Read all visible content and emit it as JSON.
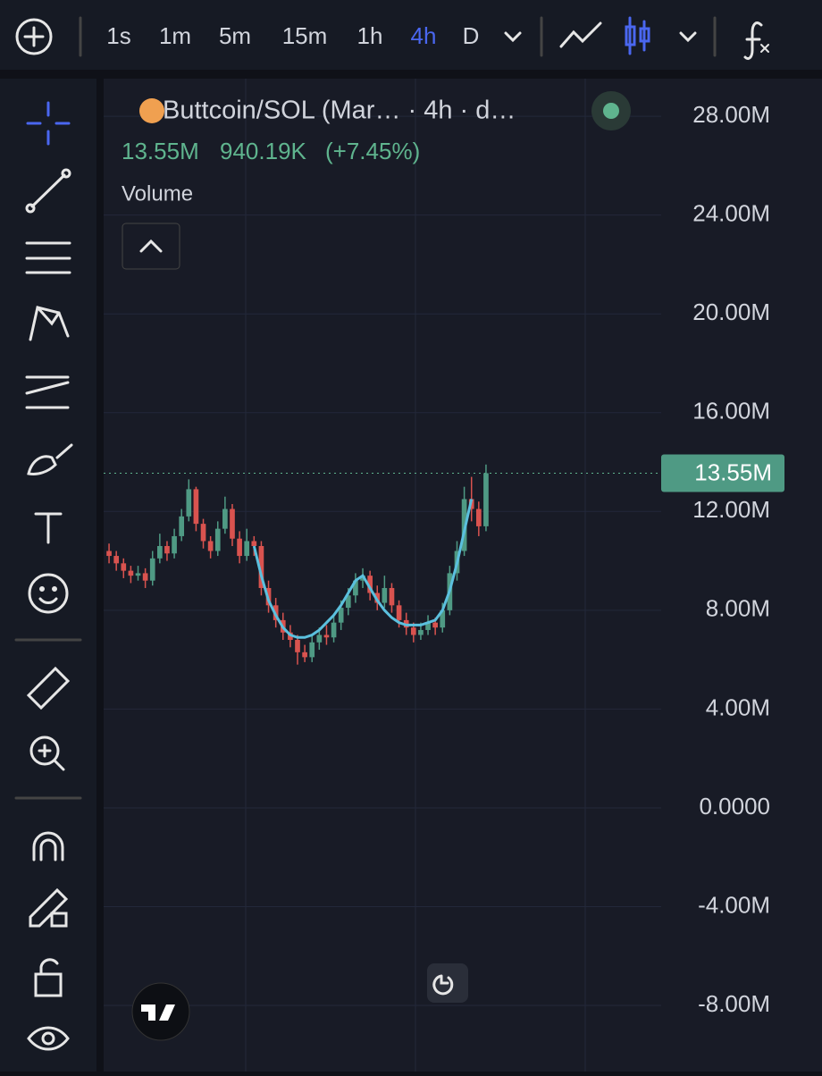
{
  "toolbar": {
    "timeframes": [
      "1s",
      "1m",
      "5m",
      "15m",
      "1h",
      "4h",
      "D"
    ]
  },
  "legend": {
    "title": "Buttcoin/SOL (Mar… · 4h · d…",
    "price": "13.55M",
    "change": "940.19K",
    "change_pct": "(+7.45%)",
    "indicator": "Volume"
  },
  "chart_data": {
    "type": "candlestick",
    "open": [
      10.4,
      10.2,
      9.9,
      9.6,
      9.4,
      9.5,
      9.2,
      10.1,
      10.6,
      10.3,
      11.0,
      11.8,
      12.9,
      11.5,
      10.8,
      10.4,
      11.3,
      12.1,
      10.9,
      10.2,
      10.8,
      10.6,
      8.9,
      8.2,
      7.6,
      7.1,
      6.8,
      6.3,
      6.1,
      6.7,
      7.0,
      6.9,
      7.5,
      8.1,
      8.6,
      9.2,
      9.4,
      8.7,
      8.3,
      8.9,
      8.2,
      7.6,
      7.3,
      7.0,
      7.2,
      7.5,
      7.3,
      8.0,
      9.5,
      10.4,
      12.5,
      12.1,
      11.4
    ],
    "high": [
      10.7,
      10.4,
      10.1,
      9.8,
      9.8,
      9.7,
      10.4,
      11.1,
      10.8,
      11.3,
      12.1,
      13.3,
      13.0,
      11.7,
      11.0,
      11.6,
      12.6,
      12.3,
      11.2,
      11.3,
      11.0,
      10.8,
      9.2,
      8.5,
      7.9,
      7.4,
      7.0,
      6.6,
      7.0,
      7.3,
      7.4,
      7.8,
      8.4,
      8.9,
      9.5,
      9.7,
      9.6,
      9.0,
      9.4,
      9.1,
      8.4,
      7.9,
      7.5,
      7.5,
      7.8,
      7.7,
      8.3,
      9.8,
      10.8,
      13.0,
      13.4,
      12.4,
      13.9
    ],
    "low": [
      9.9,
      9.6,
      9.3,
      9.1,
      9.2,
      8.9,
      9.0,
      9.9,
      10.0,
      10.1,
      10.8,
      11.6,
      11.2,
      10.5,
      10.1,
      10.2,
      11.1,
      10.6,
      9.9,
      10.0,
      10.2,
      8.6,
      7.9,
      7.3,
      6.8,
      6.5,
      5.8,
      5.9,
      5.9,
      6.4,
      6.6,
      6.7,
      7.2,
      7.8,
      8.3,
      8.9,
      8.4,
      8.0,
      8.1,
      7.9,
      7.3,
      7.0,
      6.7,
      6.8,
      7.0,
      7.0,
      7.1,
      7.8,
      9.2,
      10.2,
      11.6,
      11.0,
      11.2
    ],
    "close": [
      10.2,
      9.9,
      9.6,
      9.4,
      9.5,
      9.2,
      10.1,
      10.6,
      10.3,
      11.0,
      11.8,
      12.9,
      11.5,
      10.8,
      10.4,
      11.3,
      12.1,
      10.9,
      10.2,
      10.8,
      10.6,
      8.9,
      8.2,
      7.6,
      7.1,
      6.8,
      6.3,
      6.1,
      6.7,
      7.0,
      6.9,
      7.5,
      8.1,
      8.6,
      9.2,
      9.4,
      8.7,
      8.3,
      8.9,
      8.2,
      7.6,
      7.3,
      7.0,
      7.2,
      7.5,
      7.3,
      8.0,
      9.5,
      10.4,
      12.5,
      12.1,
      11.4,
      13.55
    ],
    "up_color": "#4f9a84",
    "down_color": "#d9534f",
    "ma": {
      "color": "#5bc0de",
      "values": [
        null,
        null,
        null,
        null,
        null,
        null,
        null,
        null,
        null,
        null,
        null,
        null,
        null,
        null,
        null,
        null,
        null,
        null,
        null,
        null,
        10.6,
        9.4,
        8.4,
        7.8,
        7.3,
        7.0,
        6.9,
        6.9,
        7.0,
        7.2,
        7.5,
        7.8,
        8.2,
        8.7,
        9.2,
        9.4,
        8.9,
        8.4,
        8.0,
        7.7,
        7.5,
        7.4,
        7.4,
        7.4,
        7.5,
        7.6,
        8.0,
        8.8,
        9.9,
        11.2,
        12.5,
        null,
        null
      ]
    },
    "ylim": [
      -10.35,
      29.27
    ],
    "yticks": [
      {
        "value": 28,
        "label": "28.00M"
      },
      {
        "value": 24,
        "label": "24.00M"
      },
      {
        "value": 20,
        "label": "20.00M"
      },
      {
        "value": 16,
        "label": "16.00M"
      },
      {
        "value": 12,
        "label": "12.00M"
      },
      {
        "value": 8,
        "label": "8.00M"
      },
      {
        "value": 4,
        "label": "4.00M"
      },
      {
        "value": 0,
        "label": "0.0000"
      },
      {
        "value": -4,
        "label": "-4.00M"
      },
      {
        "value": -8,
        "label": "-8.00M"
      }
    ],
    "last_price": {
      "value": 13.55,
      "label": "13.55M"
    },
    "grid": true
  }
}
